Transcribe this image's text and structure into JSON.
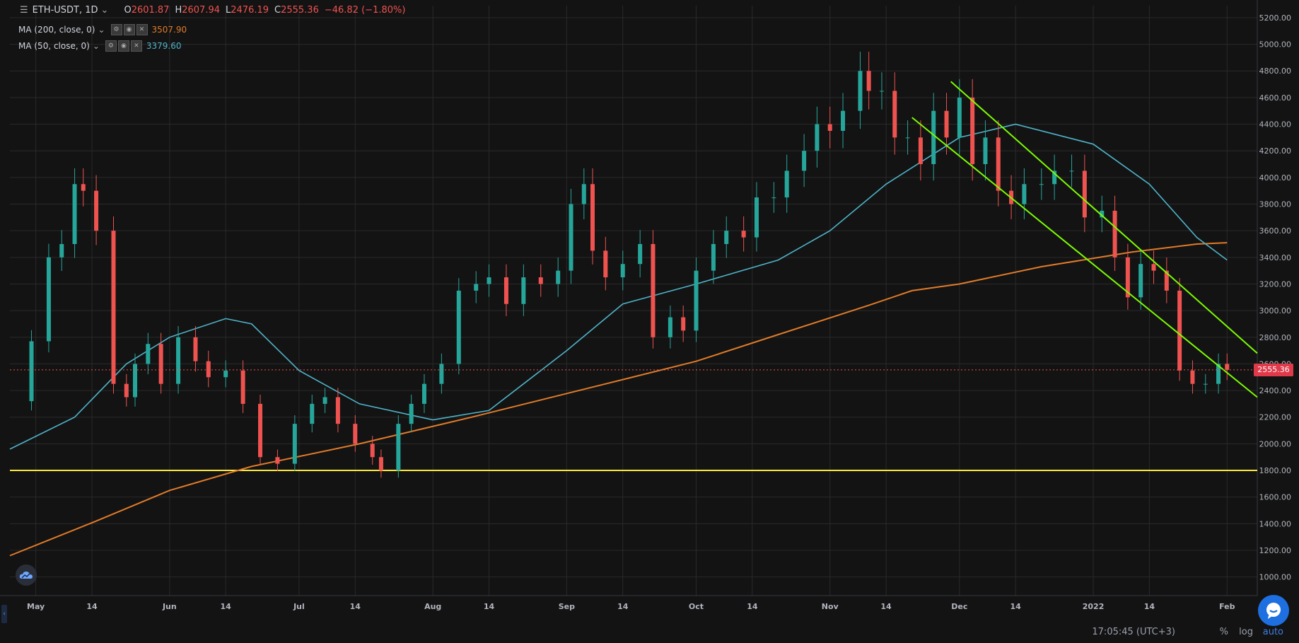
{
  "header": {
    "symbol": "ETH-USDT, 1D",
    "open_label": "O",
    "open": "2601.87",
    "high_label": "H",
    "high": "2607.94",
    "low_label": "L",
    "low": "2476.19",
    "close_label": "C",
    "close": "2555.36",
    "change": "−46.82 (−1.80%)"
  },
  "indicators": [
    {
      "label": "MA (200, close, 0)",
      "value": "3507.90",
      "color": "#e07b2a"
    },
    {
      "label": "MA (50, close, 0)",
      "value": "3379.60",
      "color": "#4fb3c9"
    }
  ],
  "price_tag": "2555.36",
  "footer": {
    "time": "17:05:45 (UTC+3)",
    "percent": "%",
    "log": "log",
    "auto": "auto"
  },
  "colors": {
    "up": "#26a69a",
    "down": "#ef5350",
    "background": "#131313",
    "grid": "#2a2a2a",
    "trendline": "#7cfc00",
    "support": "#ffeb3b",
    "ma200": "#e07b2a",
    "ma50": "#4fb3c9"
  },
  "chart_data": {
    "type": "candlestick",
    "y_axis_ticks": [
      1000,
      1200,
      1400,
      1600,
      1800,
      2000,
      2200,
      2400,
      2600,
      2800,
      3000,
      3200,
      3400,
      3600,
      3800,
      4000,
      4200,
      4400,
      4600,
      4800,
      5000,
      5200
    ],
    "y_tick_labels": [
      "1000.00",
      "1200.00",
      "1400.00",
      "1600.00",
      "1800.00",
      "2000.00",
      "2200.00",
      "2400.00",
      "2600.00",
      "2800.00",
      "3000.00",
      "3200.00",
      "3400.00",
      "3600.00",
      "3800.00",
      "4000.00",
      "4200.00",
      "4400.00",
      "4600.00",
      "4800.00",
      "5000.00",
      "5200.00"
    ],
    "x_range": [
      "2021-04-25",
      "2022-02-08"
    ],
    "x_ticks": [
      {
        "date": "2021-05-01",
        "label": "May"
      },
      {
        "date": "2021-05-14",
        "label": "14"
      },
      {
        "date": "2021-06-01",
        "label": "Jun"
      },
      {
        "date": "2021-06-14",
        "label": "14"
      },
      {
        "date": "2021-07-01",
        "label": "Jul"
      },
      {
        "date": "2021-07-14",
        "label": "14"
      },
      {
        "date": "2021-08-01",
        "label": "Aug"
      },
      {
        "date": "2021-08-14",
        "label": "14"
      },
      {
        "date": "2021-09-01",
        "label": "Sep"
      },
      {
        "date": "2021-09-14",
        "label": "14"
      },
      {
        "date": "2021-10-01",
        "label": "Oct"
      },
      {
        "date": "2021-10-14",
        "label": "14"
      },
      {
        "date": "2021-11-01",
        "label": "Nov"
      },
      {
        "date": "2021-11-14",
        "label": "14"
      },
      {
        "date": "2021-12-01",
        "label": "Dec"
      },
      {
        "date": "2021-12-14",
        "label": "14"
      },
      {
        "date": "2022-01-01",
        "label": "2022"
      },
      {
        "date": "2022-01-14",
        "label": "14"
      },
      {
        "date": "2022-02-01",
        "label": "Feb"
      }
    ],
    "close_series": [
      {
        "date": "2021-04-25",
        "close": 2320
      },
      {
        "date": "2021-04-30",
        "close": 2770
      },
      {
        "date": "2021-05-04",
        "close": 3400
      },
      {
        "date": "2021-05-07",
        "close": 3500
      },
      {
        "date": "2021-05-10",
        "close": 3950
      },
      {
        "date": "2021-05-12",
        "close": 3900
      },
      {
        "date": "2021-05-15",
        "close": 3600
      },
      {
        "date": "2021-05-19",
        "close": 2450
      },
      {
        "date": "2021-05-22",
        "close": 2350
      },
      {
        "date": "2021-05-24",
        "close": 2600
      },
      {
        "date": "2021-05-27",
        "close": 2750
      },
      {
        "date": "2021-05-30",
        "close": 2450
      },
      {
        "date": "2021-06-03",
        "close": 2800
      },
      {
        "date": "2021-06-07",
        "close": 2620
      },
      {
        "date": "2021-06-10",
        "close": 2500
      },
      {
        "date": "2021-06-14",
        "close": 2550
      },
      {
        "date": "2021-06-18",
        "close": 2300
      },
      {
        "date": "2021-06-22",
        "close": 1900
      },
      {
        "date": "2021-06-26",
        "close": 1850
      },
      {
        "date": "2021-06-30",
        "close": 2150
      },
      {
        "date": "2021-07-04",
        "close": 2300
      },
      {
        "date": "2021-07-07",
        "close": 2350
      },
      {
        "date": "2021-07-10",
        "close": 2150
      },
      {
        "date": "2021-07-14",
        "close": 2000
      },
      {
        "date": "2021-07-18",
        "close": 1900
      },
      {
        "date": "2021-07-20",
        "close": 1800
      },
      {
        "date": "2021-07-24",
        "close": 2150
      },
      {
        "date": "2021-07-27",
        "close": 2300
      },
      {
        "date": "2021-07-30",
        "close": 2450
      },
      {
        "date": "2021-08-03",
        "close": 2600
      },
      {
        "date": "2021-08-07",
        "close": 3150
      },
      {
        "date": "2021-08-11",
        "close": 3200
      },
      {
        "date": "2021-08-14",
        "close": 3250
      },
      {
        "date": "2021-08-18",
        "close": 3050
      },
      {
        "date": "2021-08-22",
        "close": 3250
      },
      {
        "date": "2021-08-26",
        "close": 3200
      },
      {
        "date": "2021-08-30",
        "close": 3300
      },
      {
        "date": "2021-09-02",
        "close": 3800
      },
      {
        "date": "2021-09-05",
        "close": 3950
      },
      {
        "date": "2021-09-07",
        "close": 3450
      },
      {
        "date": "2021-09-10",
        "close": 3250
      },
      {
        "date": "2021-09-14",
        "close": 3350
      },
      {
        "date": "2021-09-18",
        "close": 3500
      },
      {
        "date": "2021-09-21",
        "close": 2800
      },
      {
        "date": "2021-09-25",
        "close": 2950
      },
      {
        "date": "2021-09-28",
        "close": 2850
      },
      {
        "date": "2021-10-01",
        "close": 3300
      },
      {
        "date": "2021-10-05",
        "close": 3500
      },
      {
        "date": "2021-10-08",
        "close": 3600
      },
      {
        "date": "2021-10-12",
        "close": 3550
      },
      {
        "date": "2021-10-15",
        "close": 3850
      },
      {
        "date": "2021-10-19",
        "close": 3850
      },
      {
        "date": "2021-10-22",
        "close": 4050
      },
      {
        "date": "2021-10-26",
        "close": 4200
      },
      {
        "date": "2021-10-29",
        "close": 4400
      },
      {
        "date": "2021-11-01",
        "close": 4350
      },
      {
        "date": "2021-11-04",
        "close": 4500
      },
      {
        "date": "2021-11-08",
        "close": 4800
      },
      {
        "date": "2021-11-10",
        "close": 4650
      },
      {
        "date": "2021-11-13",
        "close": 4650
      },
      {
        "date": "2021-11-16",
        "close": 4300
      },
      {
        "date": "2021-11-19",
        "close": 4300
      },
      {
        "date": "2021-11-22",
        "close": 4100
      },
      {
        "date": "2021-11-25",
        "close": 4500
      },
      {
        "date": "2021-11-28",
        "close": 4300
      },
      {
        "date": "2021-12-01",
        "close": 4600
      },
      {
        "date": "2021-12-04",
        "close": 4100
      },
      {
        "date": "2021-12-07",
        "close": 4300
      },
      {
        "date": "2021-12-10",
        "close": 3900
      },
      {
        "date": "2021-12-13",
        "close": 3800
      },
      {
        "date": "2021-12-16",
        "close": 3950
      },
      {
        "date": "2021-12-20",
        "close": 3950
      },
      {
        "date": "2021-12-23",
        "close": 4050
      },
      {
        "date": "2021-12-27",
        "close": 4050
      },
      {
        "date": "2021-12-30",
        "close": 3700
      },
      {
        "date": "2022-01-03",
        "close": 3750
      },
      {
        "date": "2022-01-06",
        "close": 3400
      },
      {
        "date": "2022-01-09",
        "close": 3100
      },
      {
        "date": "2022-01-12",
        "close": 3350
      },
      {
        "date": "2022-01-15",
        "close": 3300
      },
      {
        "date": "2022-01-18",
        "close": 3150
      },
      {
        "date": "2022-01-21",
        "close": 2550
      },
      {
        "date": "2022-01-24",
        "close": 2450
      },
      {
        "date": "2022-01-27",
        "close": 2450
      },
      {
        "date": "2022-01-30",
        "close": 2600
      },
      {
        "date": "2022-02-01",
        "close": 2555
      }
    ],
    "ma200": [
      {
        "date": "2021-04-25",
        "value": 1160
      },
      {
        "date": "2021-05-15",
        "value": 1420
      },
      {
        "date": "2021-06-01",
        "value": 1650
      },
      {
        "date": "2021-06-20",
        "value": 1830
      },
      {
        "date": "2021-07-15",
        "value": 2000
      },
      {
        "date": "2021-08-10",
        "value": 2200
      },
      {
        "date": "2021-09-10",
        "value": 2450
      },
      {
        "date": "2021-10-01",
        "value": 2620
      },
      {
        "date": "2021-10-20",
        "value": 2820
      },
      {
        "date": "2021-11-10",
        "value": 3040
      },
      {
        "date": "2021-11-20",
        "value": 3150
      },
      {
        "date": "2021-12-01",
        "value": 3200
      },
      {
        "date": "2021-12-20",
        "value": 3330
      },
      {
        "date": "2022-01-10",
        "value": 3440
      },
      {
        "date": "2022-01-25",
        "value": 3500
      },
      {
        "date": "2022-02-01",
        "value": 3510
      }
    ],
    "ma50": [
      {
        "date": "2021-04-25",
        "value": 1960
      },
      {
        "date": "2021-05-10",
        "value": 2200
      },
      {
        "date": "2021-05-22",
        "value": 2600
      },
      {
        "date": "2021-06-01",
        "value": 2800
      },
      {
        "date": "2021-06-14",
        "value": 2940
      },
      {
        "date": "2021-06-20",
        "value": 2900
      },
      {
        "date": "2021-07-01",
        "value": 2550
      },
      {
        "date": "2021-07-15",
        "value": 2300
      },
      {
        "date": "2021-08-01",
        "value": 2180
      },
      {
        "date": "2021-08-14",
        "value": 2250
      },
      {
        "date": "2021-09-01",
        "value": 2700
      },
      {
        "date": "2021-09-14",
        "value": 3050
      },
      {
        "date": "2021-10-01",
        "value": 3200
      },
      {
        "date": "2021-10-20",
        "value": 3380
      },
      {
        "date": "2021-11-01",
        "value": 3600
      },
      {
        "date": "2021-11-14",
        "value": 3950
      },
      {
        "date": "2021-12-01",
        "value": 4300
      },
      {
        "date": "2021-12-14",
        "value": 4400
      },
      {
        "date": "2022-01-01",
        "value": 4250
      },
      {
        "date": "2022-01-14",
        "value": 3950
      },
      {
        "date": "2022-01-25",
        "value": 3550
      },
      {
        "date": "2022-02-01",
        "value": 3380
      }
    ],
    "support_line": {
      "value": 1800,
      "from": "2021-04-25",
      "to": "2022-02-08"
    },
    "trendlines": [
      {
        "from": {
          "date": "2021-11-29",
          "value": 4720
        },
        "to": {
          "date": "2022-02-08",
          "value": 2680
        }
      },
      {
        "from": {
          "date": "2021-11-20",
          "value": 4450
        },
        "to": {
          "date": "2022-02-08",
          "value": 2350
        }
      }
    ]
  }
}
